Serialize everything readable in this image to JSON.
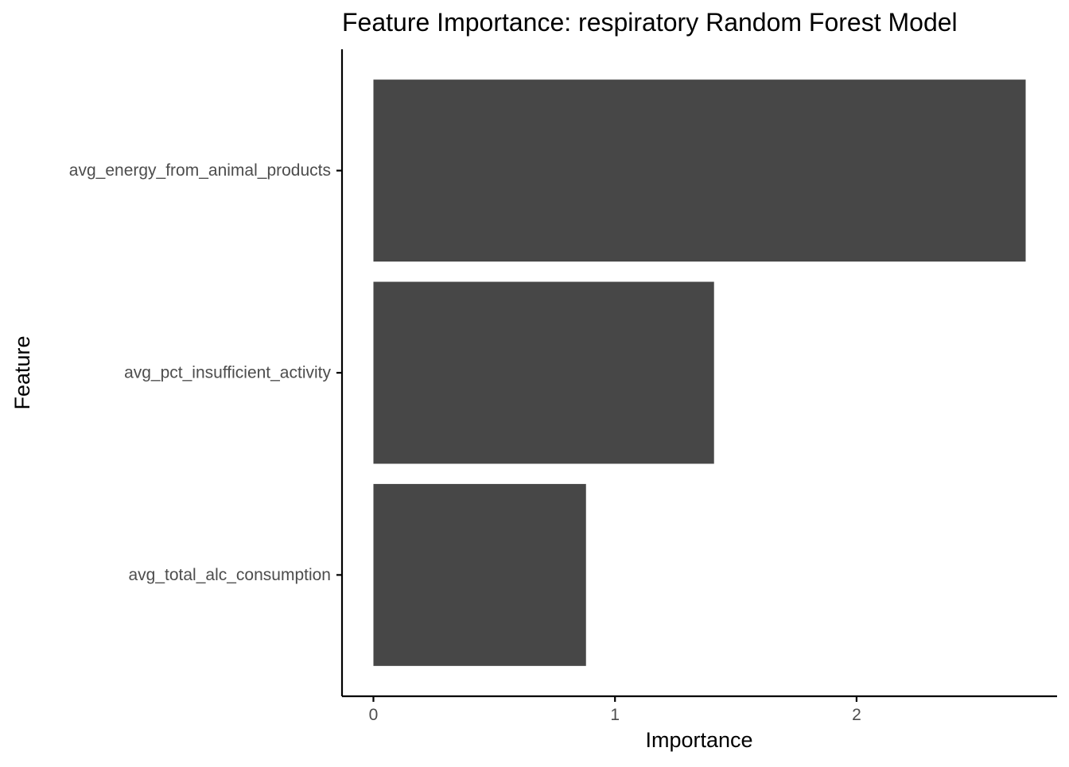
{
  "chart_data": {
    "type": "bar",
    "orientation": "horizontal",
    "title": "Feature Importance: respiratory Random Forest Model",
    "xlabel": "Importance",
    "ylabel": "Feature",
    "categories": [
      "avg_energy_from_animal_products",
      "avg_pct_insufficient_activity",
      "avg_total_alc_consumption"
    ],
    "values": [
      2.7,
      1.41,
      0.88
    ],
    "xlim": [
      -0.13,
      2.83
    ],
    "xticks": [
      0,
      1,
      2
    ],
    "xtick_labels": [
      "0",
      "1",
      "2"
    ],
    "grid": false,
    "legend": "none",
    "colors": {
      "bar": "#474747",
      "axis": "#000000",
      "tick_label": "#4d4d4d"
    }
  }
}
